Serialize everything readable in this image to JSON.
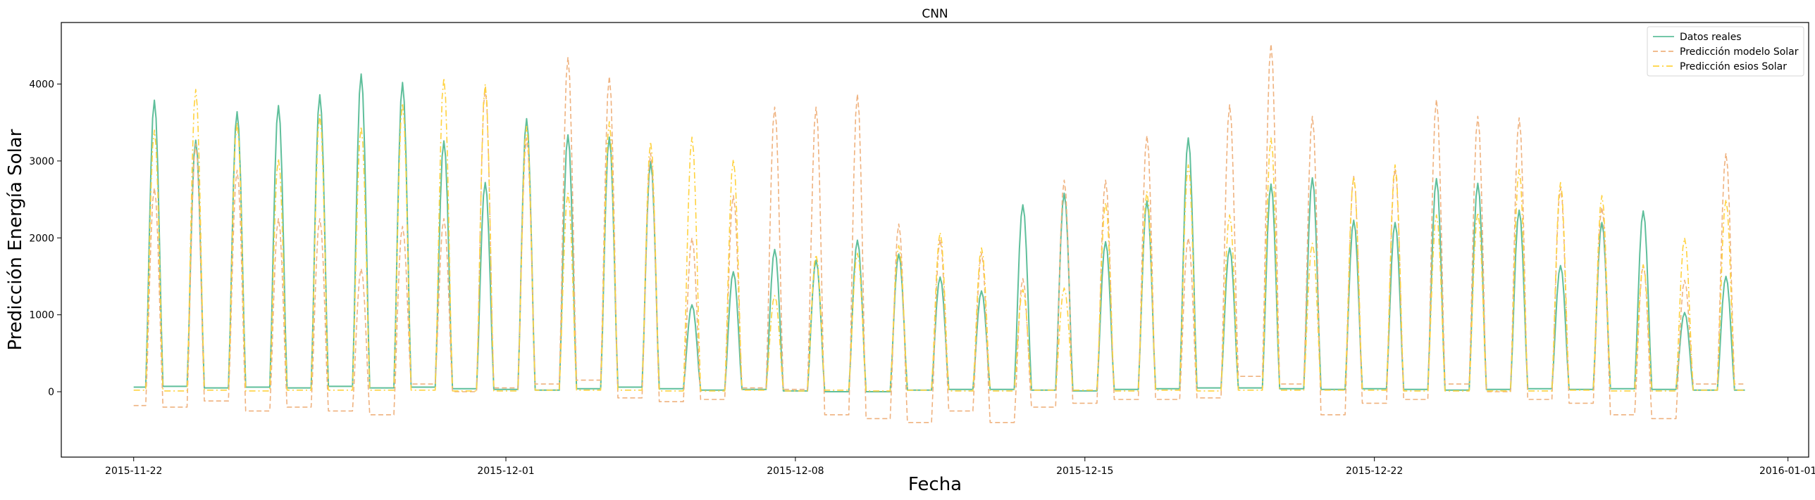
{
  "chart_data": {
    "type": "line",
    "title": "CNN",
    "xlabel": "Fecha",
    "ylabel": "Predicción Energía Solar",
    "xlim": [
      "2015-11-20T06:00",
      "2016-01-01T12:00"
    ],
    "ylim": [
      -850,
      4800
    ],
    "x_ticks": [
      "2015-11-22",
      "2015-12-01",
      "2015-12-08",
      "2015-12-15",
      "2015-12-22",
      "2016-01-01"
    ],
    "y_ticks": [
      0,
      1000,
      2000,
      3000,
      4000
    ],
    "grid": false,
    "legend": "top-right",
    "x_start": "2015-11-22T00:00",
    "x_end": "2015-12-31T00:00",
    "series": [
      {
        "name": "Datos reales",
        "color": "#5fbf9b",
        "style": "solid",
        "night": [
          60,
          70,
          50,
          60,
          50,
          70,
          50,
          60,
          40,
          30,
          20,
          40,
          60,
          40,
          20,
          30,
          10,
          0,
          0,
          20,
          30,
          30,
          20,
          10,
          30,
          40,
          50,
          50,
          40,
          30,
          40,
          30,
          20,
          30,
          40,
          30,
          40,
          30,
          20
        ],
        "peaks": [
          3790,
          3270,
          3640,
          3720,
          3860,
          4130,
          4020,
          3260,
          2720,
          3550,
          3340,
          3310,
          2990,
          1130,
          1560,
          1850,
          1710,
          1970,
          1790,
          1490,
          1310,
          2430,
          2580,
          1950,
          2480,
          3300,
          1870,
          2700,
          2780,
          2230,
          2200,
          2770,
          2710,
          2360,
          1640,
          2200,
          2350,
          1030,
          1500
        ]
      },
      {
        "name": "Predicción modelo Solar",
        "color": "#efb27f",
        "style": "dashed",
        "night": [
          -180,
          -200,
          -120,
          -250,
          -200,
          -250,
          -300,
          100,
          0,
          50,
          100,
          150,
          -80,
          -130,
          -100,
          50,
          30,
          -300,
          -350,
          -400,
          -250,
          -400,
          -200,
          -150,
          -100,
          -100,
          -80,
          200,
          100,
          -300,
          -150,
          -100,
          100,
          0,
          -100,
          -150,
          -300,
          -350,
          100
        ],
        "peaks": [
          2650,
          3220,
          2880,
          2250,
          2250,
          1600,
          2150,
          2250,
          3950,
          3300,
          4350,
          4100,
          3100,
          2000,
          2550,
          3700,
          3700,
          3870,
          2180,
          1980,
          1800,
          1470,
          2750,
          2750,
          3330,
          2000,
          3730,
          4520,
          3580,
          2800,
          2900,
          3800,
          3580,
          3560,
          2650,
          2400,
          1650,
          1450,
          3100
        ]
      },
      {
        "name": "Predicción esios Solar",
        "color": "#ffd23f",
        "style": "dashdot",
        "night": [
          20,
          10,
          20,
          10,
          20,
          20,
          20,
          20,
          10,
          10,
          20,
          20,
          20,
          10,
          10,
          20,
          10,
          20,
          10,
          20,
          10,
          10,
          20,
          20,
          10,
          20,
          10,
          20,
          20,
          20,
          20,
          10,
          10,
          10,
          10,
          20,
          10,
          10,
          20
        ],
        "peaks": [
          3400,
          3930,
          3500,
          3030,
          3600,
          3450,
          3750,
          4080,
          4000,
          3450,
          2580,
          3510,
          3250,
          3310,
          3020,
          1250,
          1780,
          1800,
          1900,
          2070,
          1870,
          1330,
          1350,
          2460,
          2600,
          2950,
          2300,
          3300,
          1930,
          2800,
          2950,
          2300,
          2330,
          2890,
          2720,
          2550,
          1650,
          2000,
          2500
        ]
      }
    ]
  }
}
